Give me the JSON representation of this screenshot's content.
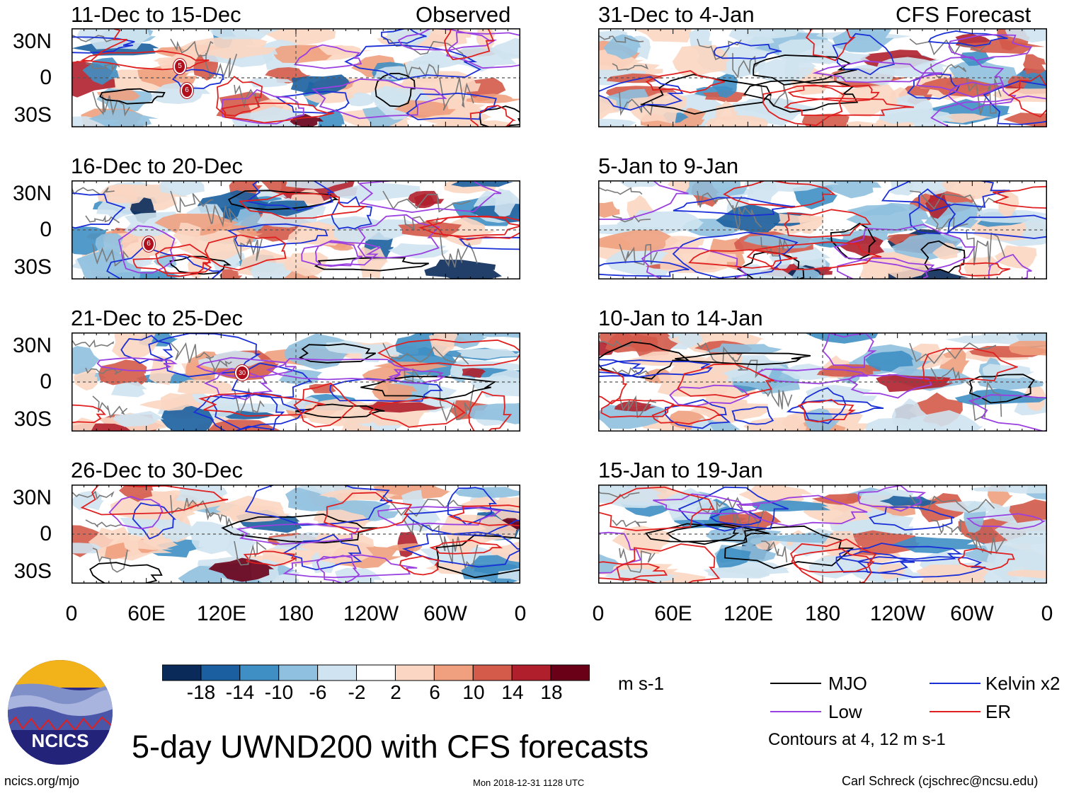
{
  "figure": {
    "title": "5-day UWND200 with CFS forecasts",
    "units": "m s-1",
    "source_url": "ncics.org/mjo",
    "timestamp": "Mon 2018-12-31 1128 UTC",
    "author": "Carl Schreck (cjschrec@ncsu.edu)",
    "logo_text": "NCICS"
  },
  "headers": {
    "left": "Observed",
    "right": "CFS Forecast"
  },
  "panels_left": [
    {
      "period": "11-Dec to 15-Dec"
    },
    {
      "period": "16-Dec to 20-Dec"
    },
    {
      "period": "21-Dec to 25-Dec"
    },
    {
      "period": "26-Dec to 30-Dec"
    }
  ],
  "panels_right": [
    {
      "period": "31-Dec to 4-Jan"
    },
    {
      "period": "5-Jan to 9-Jan"
    },
    {
      "period": "10-Jan to 14-Jan"
    },
    {
      "period": "15-Jan to 19-Jan"
    }
  ],
  "axes": {
    "y_ticks": [
      "30N",
      "0",
      "30S"
    ],
    "x_ticks": [
      "0",
      "60E",
      "120E",
      "180",
      "120W",
      "60W",
      "0"
    ]
  },
  "colorbar": {
    "labels": [
      "-18",
      "-14",
      "-10",
      "-6",
      "-2",
      "2",
      "6",
      "10",
      "14",
      "18"
    ],
    "colors": [
      "#0a2a5a",
      "#1b5fa0",
      "#3f8fc4",
      "#8fc0df",
      "#cfe3f0",
      "#ffffff",
      "#fbd6c2",
      "#f0a07e",
      "#d45a4a",
      "#b0202c",
      "#6a0018"
    ]
  },
  "legend": {
    "items": [
      {
        "label": "MJO",
        "color": "#000000"
      },
      {
        "label": "Kelvin x2",
        "color": "#1a2fd6"
      },
      {
        "label": "Low",
        "color": "#9a40e0"
      },
      {
        "label": "ER",
        "color": "#e02020"
      }
    ],
    "note": "Contours at 4, 12 m s-1"
  },
  "storm_markers": [
    {
      "label": "5"
    },
    {
      "label": "6"
    },
    {
      "label": "30"
    }
  ],
  "colors": {
    "land": "#7a7a7a",
    "equator": "#555555"
  }
}
